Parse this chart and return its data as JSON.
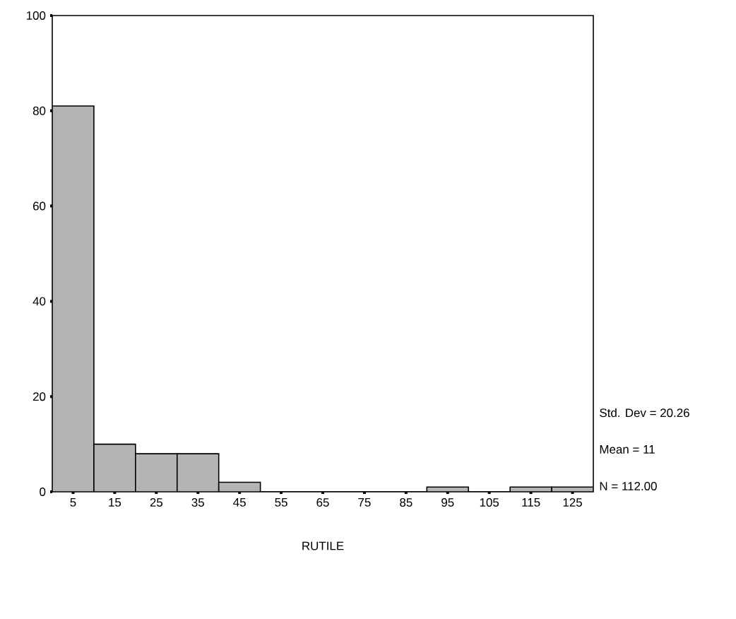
{
  "chart_data": {
    "type": "histogram",
    "xlabel": "RUTILE",
    "bins": [
      0,
      10,
      20,
      30,
      40,
      50,
      60,
      70,
      80,
      90,
      100,
      110,
      120,
      130
    ],
    "values": [
      81,
      10,
      8,
      8,
      2,
      0,
      0,
      0,
      0,
      1,
      0,
      1,
      1
    ],
    "color": "#b4b4b4",
    "xlim": [
      0,
      130
    ],
    "xticks": [
      5,
      15,
      25,
      35,
      45,
      55,
      65,
      75,
      85,
      95,
      105,
      115,
      125
    ],
    "ylim": [
      0,
      100
    ],
    "yticks": [
      0,
      20,
      40,
      60,
      80,
      100
    ],
    "annotations": [
      "Std. Dev = 20.26",
      "Mean = 11",
      "N = 112.00"
    ]
  }
}
